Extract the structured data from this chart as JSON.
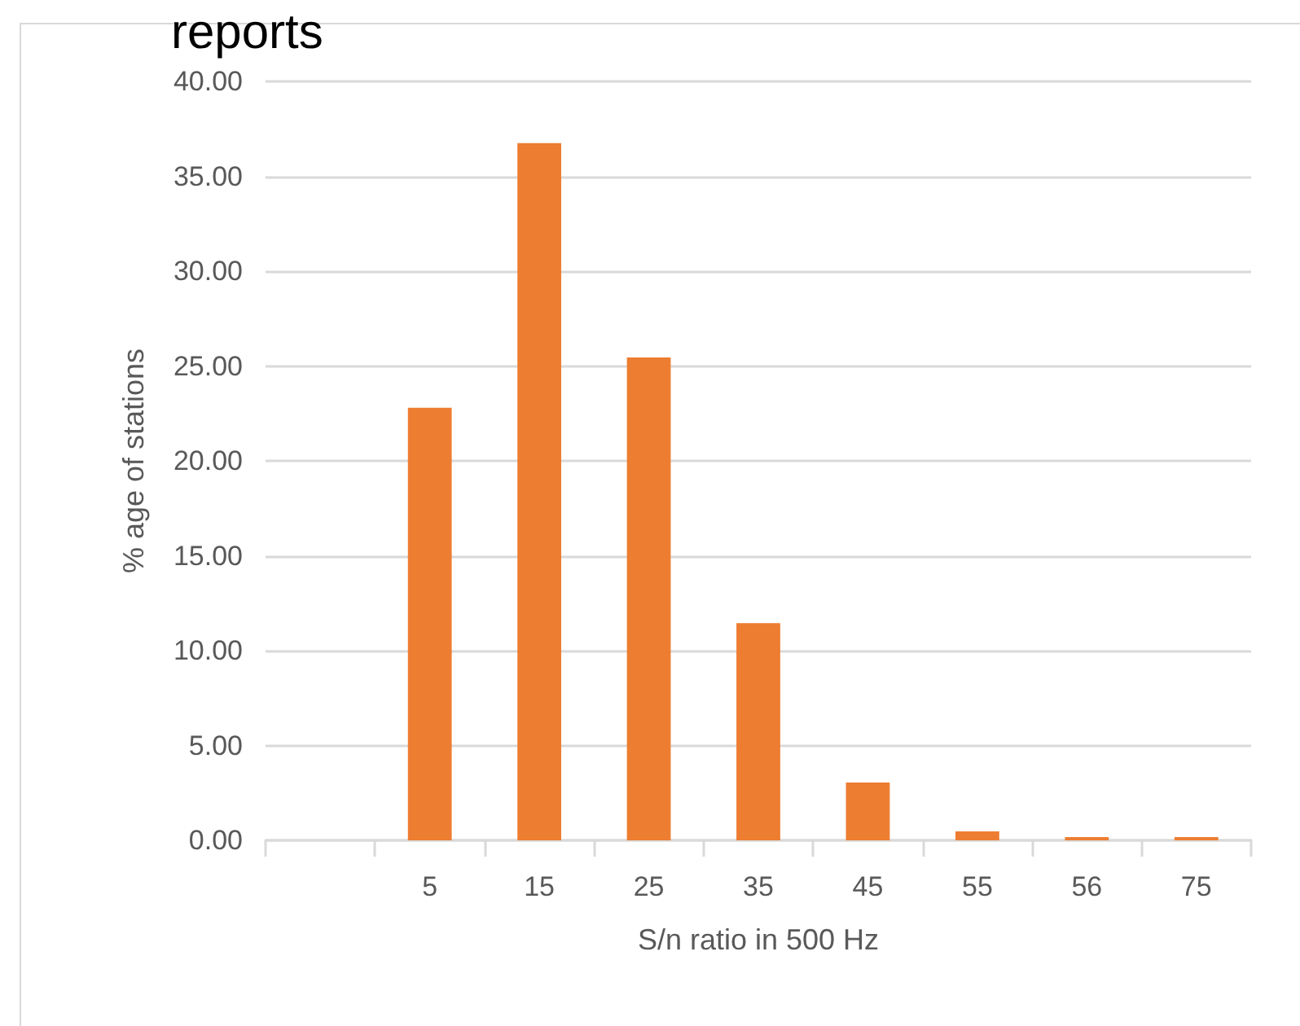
{
  "chart_data": {
    "type": "bar",
    "title": "reports",
    "xlabel": "S/n ratio in 500 Hz",
    "ylabel": "% age of stations",
    "categories": [
      null,
      "5",
      "15",
      "25",
      "35",
      "45",
      "55",
      "56",
      "75"
    ],
    "values": [
      null,
      22.8,
      36.75,
      25.45,
      11.45,
      3.05,
      0.47,
      0.17,
      0.17
    ],
    "color": "#ed7d31",
    "ylim": [
      0,
      40
    ],
    "yticks": [
      {
        "value": 0,
        "label": "0.00"
      },
      {
        "value": 5,
        "label": "5.00"
      },
      {
        "value": 10,
        "label": "10.00"
      },
      {
        "value": 15,
        "label": "15.00"
      },
      {
        "value": 20,
        "label": "20.00"
      },
      {
        "value": 25,
        "label": "25.00"
      },
      {
        "value": 30,
        "label": "30.00"
      },
      {
        "value": 35,
        "label": "35.00"
      },
      {
        "value": 40,
        "label": "40.00"
      }
    ],
    "grid": "y"
  }
}
